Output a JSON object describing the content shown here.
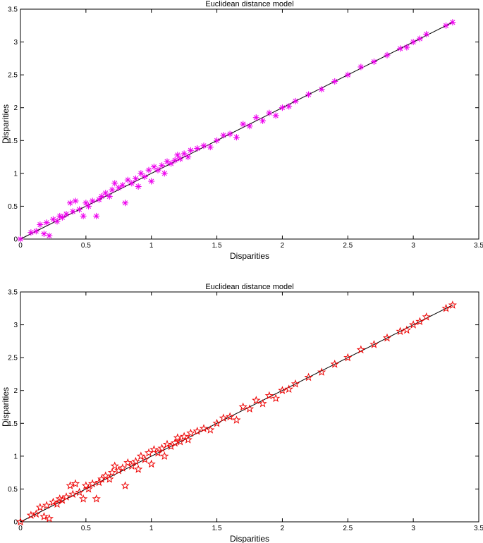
{
  "chart_data": [
    {
      "type": "scatter",
      "title": "Euclidean distance model",
      "xlabel": "Disparities",
      "ylabel": "Disparities",
      "xlim": [
        0,
        3.5
      ],
      "ylim": [
        0,
        3.5
      ],
      "xticks": [
        "0",
        "0.5",
        "1",
        "1.5",
        "2",
        "2.5",
        "3",
        "3.5"
      ],
      "yticks": [
        "0",
        "0.5",
        "1",
        "1.5",
        "2",
        "2.5",
        "3",
        "3.5"
      ],
      "grid": false,
      "marker": "asterisk",
      "marker_color": "#ee00ee",
      "line": {
        "x": [
          0,
          3.3
        ],
        "y": [
          0,
          3.3
        ]
      },
      "x": [
        0.0,
        0.08,
        0.12,
        0.15,
        0.18,
        0.2,
        0.22,
        0.25,
        0.28,
        0.3,
        0.32,
        0.35,
        0.38,
        0.4,
        0.42,
        0.45,
        0.48,
        0.5,
        0.52,
        0.55,
        0.58,
        0.6,
        0.62,
        0.65,
        0.68,
        0.7,
        0.72,
        0.75,
        0.78,
        0.8,
        0.82,
        0.85,
        0.88,
        0.9,
        0.92,
        0.95,
        0.98,
        1.0,
        1.02,
        1.05,
        1.08,
        1.1,
        1.12,
        1.15,
        1.18,
        1.2,
        1.22,
        1.25,
        1.28,
        1.3,
        1.35,
        1.4,
        1.45,
        1.5,
        1.55,
        1.6,
        1.65,
        1.7,
        1.75,
        1.8,
        1.85,
        1.9,
        1.95,
        2.0,
        2.05,
        2.1,
        2.2,
        2.3,
        2.4,
        2.5,
        2.6,
        2.7,
        2.8,
        2.9,
        2.95,
        3.0,
        3.05,
        3.1,
        3.25,
        3.3
      ],
      "y": [
        0.0,
        0.1,
        0.12,
        0.22,
        0.08,
        0.25,
        0.05,
        0.3,
        0.27,
        0.35,
        0.33,
        0.38,
        0.55,
        0.42,
        0.58,
        0.45,
        0.35,
        0.55,
        0.5,
        0.58,
        0.35,
        0.6,
        0.65,
        0.7,
        0.65,
        0.75,
        0.85,
        0.78,
        0.82,
        0.55,
        0.9,
        0.85,
        0.92,
        0.8,
        1.0,
        0.95,
        1.05,
        0.88,
        1.1,
        1.05,
        1.12,
        1.0,
        1.18,
        1.15,
        1.2,
        1.28,
        1.22,
        1.3,
        1.25,
        1.35,
        1.38,
        1.42,
        1.4,
        1.5,
        1.58,
        1.6,
        1.55,
        1.75,
        1.72,
        1.85,
        1.8,
        1.92,
        1.88,
        2.0,
        2.02,
        2.1,
        2.2,
        2.28,
        2.4,
        2.5,
        2.62,
        2.7,
        2.8,
        2.9,
        2.92,
        3.0,
        3.05,
        3.12,
        3.25,
        3.3
      ]
    },
    {
      "type": "scatter",
      "title": "Euclidean distance model",
      "xlabel": "Disparities",
      "ylabel": "Disparities",
      "xlim": [
        0,
        3.5
      ],
      "ylim": [
        0,
        3.5
      ],
      "xticks": [
        "0",
        "0.5",
        "1",
        "1.5",
        "2",
        "2.5",
        "3",
        "3.5"
      ],
      "yticks": [
        "0",
        "0.5",
        "1",
        "1.5",
        "2",
        "2.5",
        "3",
        "3.5"
      ],
      "grid": false,
      "marker": "star",
      "marker_color": "#ee0000",
      "line": {
        "x": [
          0,
          3.3
        ],
        "y": [
          0,
          3.3
        ]
      },
      "x": [
        0.0,
        0.08,
        0.12,
        0.15,
        0.18,
        0.2,
        0.22,
        0.25,
        0.28,
        0.3,
        0.32,
        0.35,
        0.38,
        0.4,
        0.42,
        0.45,
        0.48,
        0.5,
        0.52,
        0.55,
        0.58,
        0.6,
        0.62,
        0.65,
        0.68,
        0.7,
        0.72,
        0.75,
        0.78,
        0.8,
        0.82,
        0.85,
        0.88,
        0.9,
        0.92,
        0.95,
        0.98,
        1.0,
        1.02,
        1.05,
        1.08,
        1.1,
        1.12,
        1.15,
        1.18,
        1.2,
        1.22,
        1.25,
        1.28,
        1.3,
        1.35,
        1.4,
        1.45,
        1.5,
        1.55,
        1.6,
        1.65,
        1.7,
        1.75,
        1.8,
        1.85,
        1.9,
        1.95,
        2.0,
        2.05,
        2.1,
        2.2,
        2.3,
        2.4,
        2.5,
        2.6,
        2.7,
        2.8,
        2.9,
        2.95,
        3.0,
        3.05,
        3.1,
        3.25,
        3.3
      ],
      "y": [
        0.0,
        0.1,
        0.12,
        0.22,
        0.08,
        0.25,
        0.05,
        0.3,
        0.27,
        0.35,
        0.33,
        0.38,
        0.55,
        0.42,
        0.58,
        0.45,
        0.35,
        0.55,
        0.5,
        0.58,
        0.35,
        0.6,
        0.65,
        0.7,
        0.65,
        0.75,
        0.85,
        0.78,
        0.82,
        0.55,
        0.9,
        0.85,
        0.92,
        0.8,
        1.0,
        0.95,
        1.05,
        0.88,
        1.1,
        1.05,
        1.12,
        1.0,
        1.18,
        1.15,
        1.2,
        1.28,
        1.22,
        1.3,
        1.25,
        1.35,
        1.38,
        1.42,
        1.4,
        1.5,
        1.58,
        1.6,
        1.55,
        1.75,
        1.72,
        1.85,
        1.8,
        1.92,
        1.88,
        2.0,
        2.02,
        2.1,
        2.2,
        2.28,
        2.4,
        2.5,
        2.62,
        2.7,
        2.8,
        2.9,
        2.92,
        3.0,
        3.05,
        3.12,
        3.25,
        3.3
      ]
    }
  ]
}
